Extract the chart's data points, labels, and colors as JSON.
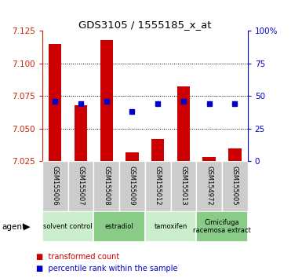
{
  "title": "GDS3105 / 1555185_x_at",
  "categories": [
    "GSM155006",
    "GSM155007",
    "GSM155008",
    "GSM155009",
    "GSM155012",
    "GSM155013",
    "GSM154972",
    "GSM155005"
  ],
  "bar_values": [
    7.115,
    7.068,
    7.118,
    7.032,
    7.042,
    7.082,
    7.028,
    7.035
  ],
  "bar_base": 7.025,
  "percentile_values": [
    46,
    44,
    46,
    38,
    44,
    46,
    44,
    44
  ],
  "ylim": [
    7.025,
    7.125
  ],
  "yticks": [
    7.025,
    7.05,
    7.075,
    7.1,
    7.125
  ],
  "y2lim": [
    0,
    100
  ],
  "y2ticks": [
    0,
    25,
    50,
    75,
    100
  ],
  "y2labels": [
    "0",
    "25",
    "50",
    "75",
    "100%"
  ],
  "bar_color": "#cc0000",
  "dot_color": "#0000cc",
  "left_axis_color": "#cc2200",
  "right_axis_color": "#0000cc",
  "agent_groups": [
    {
      "label": "solvent control",
      "start": 0,
      "end": 2,
      "color": "#cceecc"
    },
    {
      "label": "estradiol",
      "start": 2,
      "end": 4,
      "color": "#88cc88"
    },
    {
      "label": "tamoxifen",
      "start": 4,
      "end": 6,
      "color": "#cceecc"
    },
    {
      "label": "Cimicifuga\nracemosa extract",
      "start": 6,
      "end": 8,
      "color": "#88cc88"
    }
  ],
  "legend_bar_label": "transformed count",
  "legend_dot_label": "percentile rank within the sample",
  "background_color": "#ffffff",
  "plot_bg_color": "#ffffff",
  "grid_color": "#000000",
  "label_bg_color": "#cccccc",
  "bar_width": 0.5
}
